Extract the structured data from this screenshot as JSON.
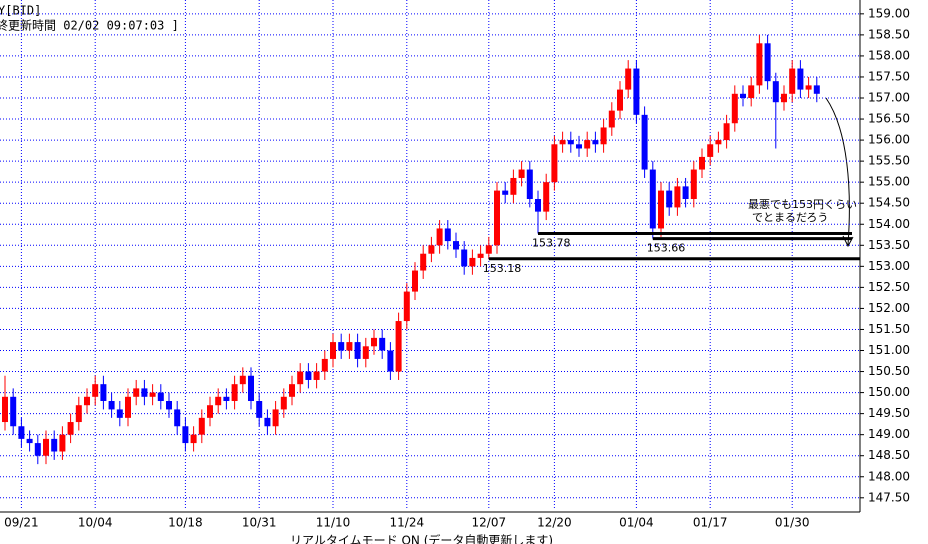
{
  "header": {
    "symbol": "Y[BID]",
    "updated": "終更新時間 02/02 09:07:03 ]"
  },
  "footer": {
    "mode": "リアルタイムモード ON (データ自動更新します)"
  },
  "chart_data": {
    "type": "candlestick",
    "up_color": "#ff0000",
    "down_color": "#0000ff",
    "grid": true,
    "grid_color": "#0000ff",
    "ylim": [
      147.21,
      159.21
    ],
    "yticks": [
      {
        "value": 147.5,
        "label": "147.50"
      },
      {
        "value": 148,
        "label": "148.00"
      },
      {
        "value": 148.5,
        "label": "148.50"
      },
      {
        "value": 149,
        "label": "149.00"
      },
      {
        "value": 149.5,
        "label": "149.50"
      },
      {
        "value": 150,
        "label": "150.00"
      },
      {
        "value": 150.5,
        "label": "150.50"
      },
      {
        "value": 151,
        "label": "151.00"
      },
      {
        "value": 151.5,
        "label": "151.50"
      },
      {
        "value": 152,
        "label": "152.00"
      },
      {
        "value": 152.5,
        "label": "152.50"
      },
      {
        "value": 153,
        "label": "153.00"
      },
      {
        "value": 153.5,
        "label": "153.50"
      },
      {
        "value": 154,
        "label": "154.00"
      },
      {
        "value": 154.5,
        "label": "154.50"
      },
      {
        "value": 155,
        "label": "155.00"
      },
      {
        "value": 155.5,
        "label": "155.50"
      },
      {
        "value": 156,
        "label": "156.00"
      },
      {
        "value": 156.5,
        "label": "156.50"
      },
      {
        "value": 157,
        "label": "157.00"
      },
      {
        "value": 157.5,
        "label": "157.50"
      },
      {
        "value": 158,
        "label": "158.00"
      },
      {
        "value": 158.5,
        "label": "158.50"
      },
      {
        "value": 159,
        "label": "159.00"
      }
    ],
    "categories": [
      null,
      null,
      "09/21",
      null,
      null,
      null,
      null,
      null,
      null,
      null,
      null,
      "10/04",
      null,
      null,
      null,
      null,
      null,
      null,
      null,
      null,
      null,
      null,
      "10/18",
      null,
      null,
      null,
      null,
      null,
      null,
      null,
      null,
      "10/31",
      null,
      null,
      null,
      null,
      null,
      null,
      null,
      null,
      "11/10",
      null,
      null,
      null,
      null,
      null,
      null,
      null,
      null,
      "11/24",
      null,
      null,
      null,
      null,
      null,
      null,
      null,
      null,
      null,
      "12/07",
      null,
      null,
      null,
      null,
      null,
      null,
      null,
      "12/20",
      null,
      null,
      null,
      null,
      null,
      null,
      null,
      null,
      null,
      "01/04",
      null,
      null,
      null,
      null,
      null,
      null,
      null,
      null,
      "01/17",
      null,
      null,
      null,
      null,
      null,
      null,
      null,
      null,
      null,
      "01/30",
      null,
      null,
      null
    ],
    "open": [
      149.3,
      149.9,
      149.2,
      148.9,
      148.8,
      148.5,
      148.9,
      148.6,
      149.0,
      149.3,
      149.7,
      149.9,
      150.2,
      149.8,
      149.6,
      149.4,
      149.9,
      150.1,
      149.9,
      150.0,
      149.8,
      149.6,
      149.2,
      148.8,
      149.0,
      149.4,
      149.7,
      149.9,
      149.8,
      150.2,
      150.4,
      149.8,
      149.4,
      149.2,
      149.6,
      149.9,
      150.2,
      150.5,
      150.3,
      150.5,
      150.8,
      151.2,
      151.0,
      151.2,
      150.8,
      151.1,
      151.3,
      151.0,
      150.5,
      151.7,
      152.4,
      152.9,
      153.3,
      153.5,
      153.9,
      153.6,
      153.4,
      153.0,
      153.2,
      153.3,
      153.5,
      154.8,
      154.7,
      155.1,
      155.3,
      154.6,
      154.3,
      155.0,
      155.9,
      156.0,
      155.9,
      155.8,
      156.0,
      155.9,
      156.3,
      156.7,
      157.2,
      157.7,
      156.6,
      155.3,
      153.9,
      154.8,
      154.4,
      154.9,
      154.6,
      155.3,
      155.6,
      155.9,
      156.0,
      156.4,
      157.1,
      157.0,
      157.3,
      158.3,
      157.4,
      156.9,
      157.1,
      157.7,
      157.2,
      157.3
    ],
    "high": [
      150.4,
      150.1,
      149.4,
      149.1,
      149.0,
      149.1,
      149.1,
      149.2,
      149.5,
      149.9,
      150.1,
      150.4,
      150.4,
      150.0,
      149.8,
      150.1,
      150.3,
      150.3,
      150.2,
      150.2,
      150.0,
      149.8,
      149.4,
      149.2,
      149.6,
      149.9,
      150.1,
      150.1,
      150.4,
      150.6,
      150.6,
      150.0,
      149.6,
      149.8,
      150.1,
      150.4,
      150.7,
      150.7,
      150.7,
      151.0,
      151.4,
      151.4,
      151.4,
      151.4,
      151.3,
      151.5,
      151.5,
      151.2,
      151.9,
      152.6,
      153.1,
      153.5,
      153.7,
      154.1,
      154.1,
      153.8,
      153.6,
      153.4,
      153.5,
      153.7,
      155.0,
      155.0,
      155.3,
      155.5,
      155.5,
      154.8,
      155.2,
      156.1,
      156.2,
      156.2,
      156.1,
      156.2,
      156.2,
      156.5,
      156.9,
      157.4,
      157.9,
      157.9,
      156.8,
      155.5,
      155.0,
      155.0,
      155.1,
      155.1,
      155.5,
      155.8,
      156.1,
      156.2,
      156.6,
      157.3,
      157.3,
      157.5,
      158.5,
      158.5,
      157.6,
      157.3,
      157.9,
      157.9,
      157.5,
      157.5
    ],
    "low": [
      149.1,
      149.0,
      148.7,
      148.6,
      148.3,
      148.3,
      148.4,
      148.4,
      148.8,
      149.1,
      149.5,
      149.7,
      149.6,
      149.4,
      149.2,
      149.2,
      149.7,
      149.7,
      149.7,
      149.6,
      149.4,
      149.0,
      148.6,
      148.6,
      148.8,
      149.2,
      149.5,
      149.6,
      149.6,
      150.0,
      149.6,
      149.2,
      149.0,
      149.0,
      149.4,
      149.7,
      150.0,
      150.1,
      150.1,
      150.3,
      150.6,
      150.8,
      150.8,
      150.6,
      150.6,
      150.9,
      150.8,
      150.3,
      150.3,
      151.5,
      152.2,
      152.7,
      153.1,
      153.3,
      153.4,
      153.2,
      152.8,
      152.8,
      153.0,
      153.18,
      153.3,
      154.5,
      154.5,
      154.9,
      154.4,
      153.78,
      154.1,
      154.8,
      155.7,
      155.7,
      155.6,
      155.6,
      155.7,
      155.7,
      156.1,
      156.5,
      157.0,
      156.4,
      155.1,
      153.66,
      153.7,
      154.2,
      154.2,
      154.4,
      154.4,
      155.1,
      155.4,
      155.7,
      155.8,
      156.2,
      156.8,
      156.8,
      157.1,
      157.2,
      155.8,
      156.7,
      156.9,
      157.0,
      157.0,
      156.9
    ],
    "close": [
      149.9,
      149.2,
      148.9,
      148.8,
      148.5,
      148.9,
      148.6,
      149.0,
      149.3,
      149.7,
      149.9,
      150.2,
      149.8,
      149.6,
      149.4,
      149.9,
      150.1,
      149.9,
      150.0,
      149.8,
      149.6,
      149.2,
      148.8,
      149.0,
      149.4,
      149.7,
      149.9,
      149.8,
      150.2,
      150.4,
      149.8,
      149.4,
      149.2,
      149.6,
      149.9,
      150.2,
      150.5,
      150.3,
      150.5,
      150.8,
      151.2,
      151.0,
      151.2,
      150.8,
      151.1,
      151.3,
      151.0,
      150.5,
      151.7,
      152.4,
      152.9,
      153.3,
      153.5,
      153.9,
      153.6,
      153.4,
      153.0,
      153.2,
      153.3,
      153.5,
      154.8,
      154.7,
      155.1,
      155.3,
      154.6,
      154.3,
      155.0,
      155.9,
      156.0,
      155.9,
      155.8,
      156.0,
      155.9,
      156.3,
      156.7,
      157.2,
      157.7,
      156.6,
      155.3,
      153.9,
      154.8,
      154.4,
      154.9,
      154.6,
      155.3,
      155.6,
      155.9,
      156.0,
      156.4,
      157.1,
      157.0,
      157.3,
      158.3,
      157.4,
      156.9,
      157.1,
      157.7,
      157.2,
      157.3,
      157.1
    ],
    "level_lines": [
      153.78,
      153.66,
      153.18
    ],
    "annotation": [
      "最悪でも153円くらい",
      "でとまるだろう"
    ]
  }
}
